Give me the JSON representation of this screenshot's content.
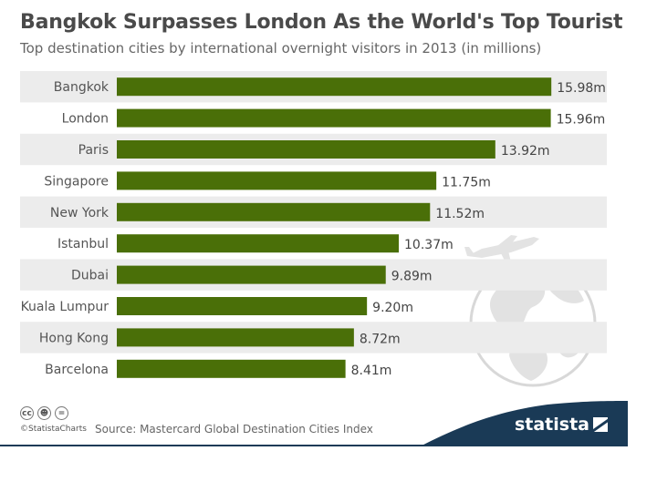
{
  "title": "Bangkok Surpasses London As the World's Top Tourist City",
  "subtitle": "Top destination cities by international overnight visitors in 2013 (in millions)",
  "chart_data": {
    "type": "bar",
    "orientation": "horizontal",
    "categories": [
      "Bangkok",
      "London",
      "Paris",
      "Singapore",
      "New York",
      "Istanbul",
      "Dubai",
      "Kuala Lumpur",
      "Hong Kong",
      "Barcelona"
    ],
    "values": [
      15.98,
      15.96,
      13.92,
      11.75,
      11.52,
      10.37,
      9.89,
      9.2,
      8.72,
      8.41
    ],
    "value_labels": [
      "15.98m",
      "15.96m",
      "13.92m",
      "11.75m",
      "11.52m",
      "10.37m",
      "9.89m",
      "9.20m",
      "8.72m",
      "8.41m"
    ],
    "title": "Bangkok Surpasses London As the World's Top Tourist City",
    "subtitle": "Top destination cities by international overnight visitors in 2013 (in millions)",
    "unit": "millions",
    "bar_color": "#4a6f08",
    "row_band_color": "#ececec",
    "grid": false,
    "legend": "none"
  },
  "footer": {
    "copyright": "©StatistaCharts",
    "source": "Source: Mastercard Global Destination Cities Index",
    "brand": "statista",
    "license_icons": [
      "cc-icon",
      "by-icon",
      "nd-icon"
    ],
    "band_color": "#1a3a56"
  }
}
